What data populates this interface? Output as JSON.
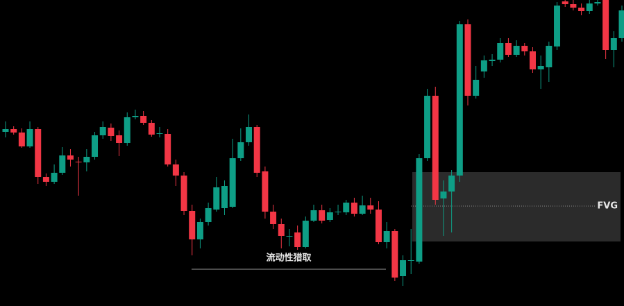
{
  "chart_data": {
    "type": "candlestick",
    "open": [
      251,
      255,
      250,
      230,
      255,
      186,
      179,
      192,
      217,
      208,
      207,
      215,
      246,
      257,
      246,
      235,
      272,
      274,
      264,
      248,
      248,
      204,
      188,
      137,
      96,
      121,
      139,
      141,
      143,
      213,
      236,
      258,
      194,
      136,
      118,
      100,
      106,
      85,
      123,
      138,
      124,
      135,
      135,
      149,
      133,
      145,
      139,
      92,
      108,
      43,
      65,
      64,
      213,
      303,
      155,
      165,
      188,
      406,
      303,
      338,
      353,
      355,
      379,
      362,
      375,
      367,
      341,
      344,
      374,
      439,
      435,
      430,
      425,
      436,
      441,
      369,
      386
    ],
    "high": [
      266,
      259,
      256,
      266,
      258,
      191,
      204,
      229,
      226,
      215,
      226,
      251,
      266,
      263,
      253,
      279,
      283,
      281,
      268,
      258,
      255,
      211,
      193,
      146,
      126,
      149,
      186,
      181,
      241,
      256,
      276,
      261,
      201,
      146,
      126,
      111,
      116,
      129,
      146,
      146,
      141,
      146,
      153,
      156,
      159,
      156,
      151,
      121,
      111,
      73,
      111,
      219,
      313,
      316,
      181,
      196,
      411,
      413,
      346,
      361,
      363,
      386,
      386,
      383,
      379,
      373,
      361,
      381,
      438,
      441,
      441,
      436,
      441,
      441,
      441,
      396,
      433
    ],
    "low": [
      243,
      247,
      228,
      228,
      176,
      173,
      176,
      189,
      201,
      159,
      194,
      211,
      241,
      238,
      216,
      231,
      269,
      261,
      244,
      243,
      201,
      173,
      131,
      73,
      83,
      116,
      136,
      131,
      141,
      209,
      231,
      186,
      126,
      111,
      83,
      86,
      81,
      83,
      121,
      119,
      121,
      131,
      131,
      129,
      131,
      133,
      89,
      83,
      36,
      29,
      46,
      61,
      209,
      146,
      101,
      106,
      179,
      289,
      299,
      329,
      346,
      351,
      359,
      359,
      361,
      336,
      313,
      323,
      369,
      431,
      426,
      419,
      421,
      433,
      356,
      344,
      381
    ],
    "close": [
      255,
      250,
      230,
      255,
      186,
      179,
      192,
      217,
      211,
      207,
      215,
      246,
      258,
      245,
      235,
      272,
      274,
      264,
      247,
      249,
      204,
      188,
      137,
      96,
      121,
      141,
      171,
      173,
      213,
      236,
      258,
      192,
      136,
      118,
      101,
      101,
      85,
      123,
      138,
      123,
      135,
      136,
      149,
      133,
      145,
      139,
      92,
      108,
      41,
      66,
      66,
      213,
      303,
      153,
      165,
      188,
      406,
      303,
      326,
      354,
      355,
      379,
      362,
      375,
      367,
      341,
      346,
      375,
      433,
      435,
      430,
      425,
      436,
      438,
      369,
      386,
      426
    ],
    "up_color": "#0e9e86",
    "down_color": "#f23645",
    "ylim": [
      0,
      441
    ],
    "fvg": {
      "label": "FVG",
      "low": 93,
      "high": 193,
      "mid": 144
    },
    "liquidity": {
      "label": "流动性猎取",
      "level": 53
    }
  }
}
